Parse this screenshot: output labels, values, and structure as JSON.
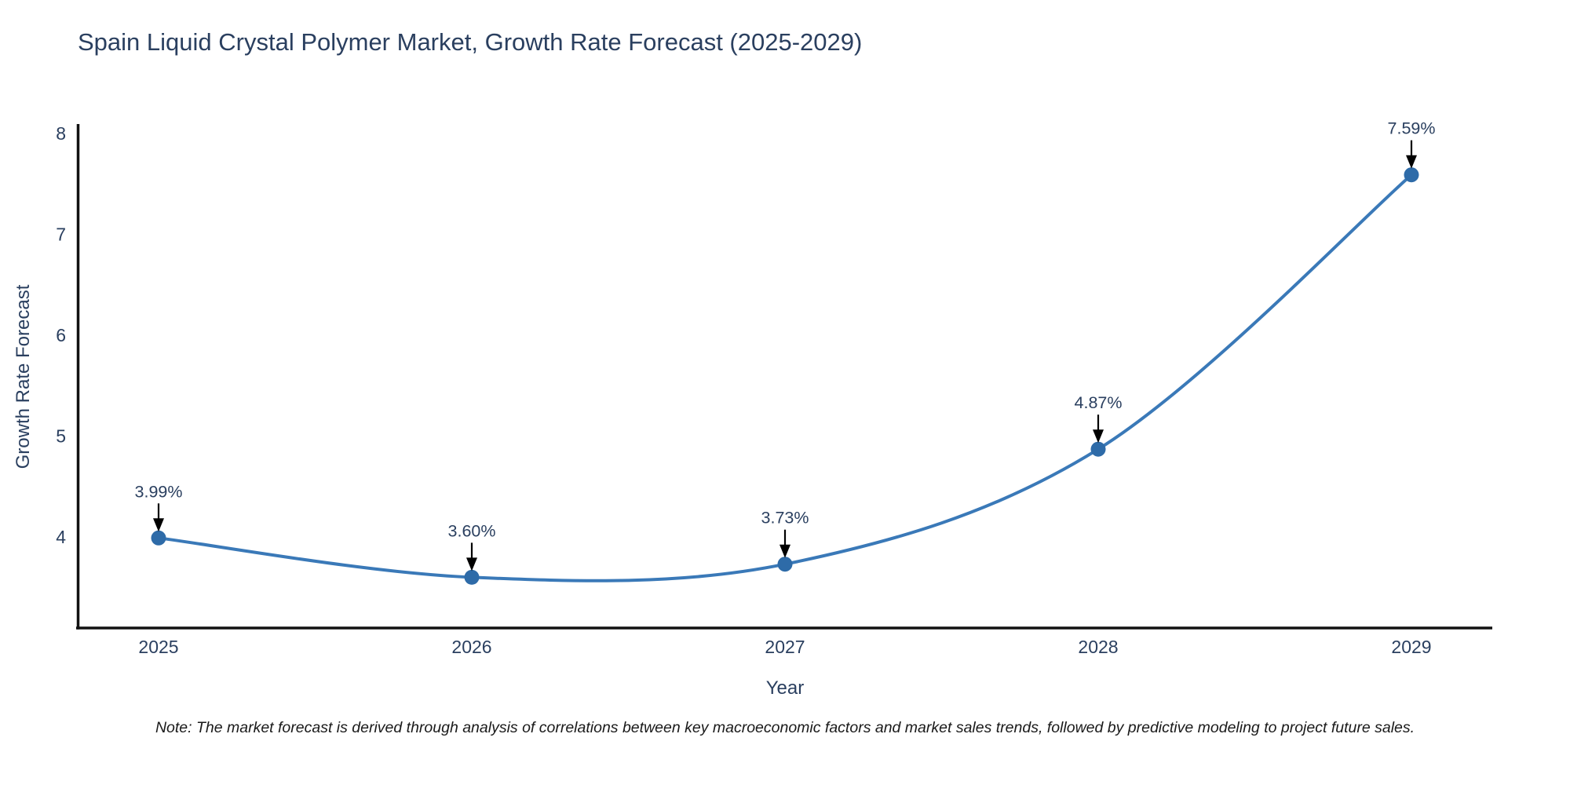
{
  "title": "Spain Liquid Crystal Polymer Market, Growth Rate Forecast (2025-2029)",
  "note": "Note: The market forecast is derived through analysis of correlations between key macroeconomic factors and market sales trends, followed by predictive modeling to project future sales.",
  "chart_data": {
    "type": "line",
    "title": "Spain Liquid Crystal Polymer Market, Growth Rate Forecast (2025-2029)",
    "xlabel": "Year",
    "ylabel": "Growth Rate Forecast",
    "x": [
      2025,
      2026,
      2027,
      2028,
      2029
    ],
    "values": [
      3.99,
      3.6,
      3.73,
      4.87,
      7.59
    ],
    "point_labels": [
      "3.99%",
      "3.60%",
      "3.73%",
      "4.87%",
      "7.59%"
    ],
    "yticks": [
      4,
      5,
      6,
      7,
      8
    ],
    "ylim": [
      3.1,
      8.08
    ],
    "line_shape": "spline",
    "grid": false,
    "legend": "none",
    "colors": {
      "line": "#3a79b8",
      "marker": "#2e6ba8",
      "axis": "#111111",
      "text": "#2a3f5f",
      "arrow": "#000000"
    }
  }
}
